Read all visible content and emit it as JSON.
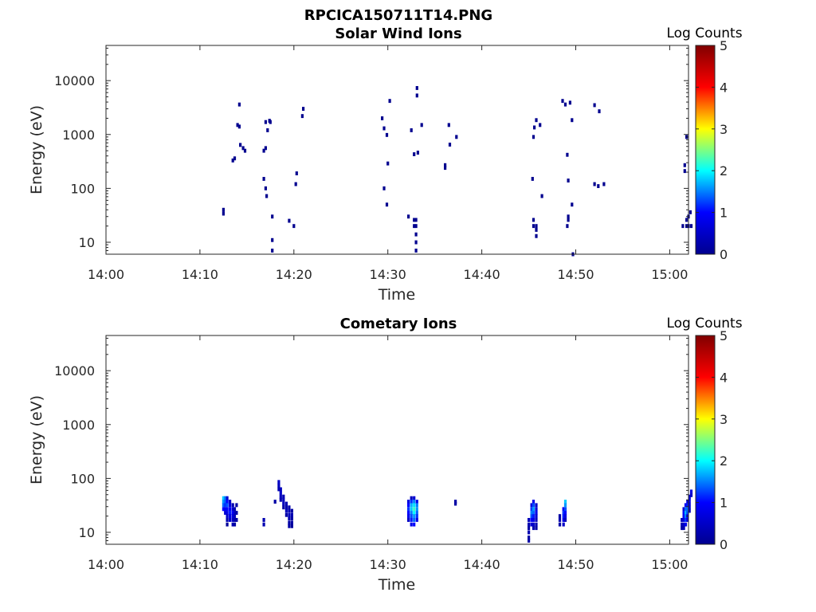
{
  "figure": {
    "title": "RPCICA150711T14.PNG"
  },
  "colormap": {
    "name": "jet",
    "stops": [
      "#00008f",
      "#0000ff",
      "#00ffff",
      "#ffff00",
      "#ff0000",
      "#800000"
    ]
  },
  "chart_data": [
    {
      "type": "heatmap",
      "title": "Solar Wind Ions",
      "xlabel": "Time",
      "ylabel": "Energy (eV)",
      "xlim": [
        "14:00",
        "15:02"
      ],
      "ylim": [
        6,
        45000
      ],
      "yscale": "log",
      "xticks": [
        "14:00",
        "14:10",
        "14:20",
        "14:30",
        "14:40",
        "14:50",
        "15:00"
      ],
      "yticks": [
        10,
        100,
        1000,
        10000
      ],
      "colorbar": {
        "label": "Log Counts",
        "range": [
          0,
          5
        ],
        "ticks": [
          0,
          1,
          2,
          3,
          4,
          5
        ]
      },
      "cells": [
        [
          "14:12.5",
          40,
          0
        ],
        [
          "14:12.5",
          34,
          0
        ],
        [
          "14:13.5",
          330,
          0
        ],
        [
          "14:13.7",
          360,
          0
        ],
        [
          "14:14.0",
          1500,
          0
        ],
        [
          "14:14.2",
          1400,
          0
        ],
        [
          "14:14.2",
          3600,
          0
        ],
        [
          "14:14.3",
          640,
          0
        ],
        [
          "14:14.6",
          560,
          0
        ],
        [
          "14:14.8",
          500,
          0
        ],
        [
          "14:16.8",
          500,
          0
        ],
        [
          "14:17.0",
          560,
          0
        ],
        [
          "14:17.0",
          1700,
          0
        ],
        [
          "14:17.2",
          1200,
          0
        ],
        [
          "14:17.4",
          1800,
          0
        ],
        [
          "14:17.5",
          1700,
          0
        ],
        [
          "14:16.8",
          150,
          0
        ],
        [
          "14:17.0",
          100,
          0
        ],
        [
          "14:17.1",
          72,
          0
        ],
        [
          "14:17.7",
          30,
          0
        ],
        [
          "14:17.7",
          11,
          0
        ],
        [
          "14:17.7",
          7,
          0
        ],
        [
          "14:19.5",
          25,
          0
        ],
        [
          "14:20.0",
          20,
          0
        ],
        [
          "14:20.2",
          120,
          0
        ],
        [
          "14:20.3",
          190,
          0
        ],
        [
          "14:20.9",
          2200,
          0
        ],
        [
          "14:21.0",
          3000,
          0
        ],
        [
          "14:29.4",
          2000,
          0
        ],
        [
          "14:29.6",
          1300,
          0
        ],
        [
          "14:29.9",
          980,
          0
        ],
        [
          "14:30.0",
          290,
          0
        ],
        [
          "14:30.2",
          4200,
          0
        ],
        [
          "14:29.6",
          100,
          0
        ],
        [
          "14:29.9",
          50,
          0
        ],
        [
          "14:32.2",
          30,
          0
        ],
        [
          "14:32.5",
          1200,
          0
        ],
        [
          "14:32.8",
          430,
          0
        ],
        [
          "14:32.8",
          26,
          0
        ],
        [
          "14:32.8",
          20,
          0
        ],
        [
          "14:33.0",
          26,
          0
        ],
        [
          "14:33.0",
          20,
          0
        ],
        [
          "14:33.0",
          14,
          0
        ],
        [
          "14:33.0",
          10,
          0
        ],
        [
          "14:33.0",
          7,
          0
        ],
        [
          "14:33.1",
          5300,
          0
        ],
        [
          "14:33.1",
          7300,
          0
        ],
        [
          "14:33.2",
          460,
          0
        ],
        [
          "14:33.6",
          1500,
          0
        ],
        [
          "14:36.1",
          270,
          0
        ],
        [
          "14:36.1",
          240,
          0
        ],
        [
          "14:36.5",
          1500,
          0
        ],
        [
          "14:36.6",
          650,
          0
        ],
        [
          "14:37.3",
          900,
          0
        ],
        [
          "14:45.4",
          150,
          0
        ],
        [
          "14:45.5",
          900,
          0
        ],
        [
          "14:45.6",
          1350,
          0
        ],
        [
          "14:45.8",
          1850,
          0
        ],
        [
          "14:46.2",
          1500,
          0
        ],
        [
          "14:46.4",
          72,
          0
        ],
        [
          "14:45.5",
          26,
          0
        ],
        [
          "14:45.5",
          20,
          0
        ],
        [
          "14:45.8",
          20,
          0
        ],
        [
          "14:45.8",
          17,
          0
        ],
        [
          "14:45.8",
          13,
          0
        ],
        [
          "14:48.6",
          4200,
          0
        ],
        [
          "14:48.9",
          3600,
          0
        ],
        [
          "14:49.4",
          3900,
          0
        ],
        [
          "14:49.1",
          420,
          0
        ],
        [
          "14:49.2",
          140,
          0
        ],
        [
          "14:49.6",
          1850,
          0
        ],
        [
          "14:49.1",
          20,
          0
        ],
        [
          "14:49.2",
          30,
          0
        ],
        [
          "14:49.2",
          26,
          0
        ],
        [
          "14:49.6",
          50,
          0
        ],
        [
          "14:49.7",
          6,
          0
        ],
        [
          "14:52.0",
          3500,
          0
        ],
        [
          "14:52.5",
          2700,
          0
        ],
        [
          "14:52.0",
          120,
          0
        ],
        [
          "14:52.4",
          110,
          0
        ],
        [
          "14:53.0",
          120,
          0
        ],
        [
          "15:01.4",
          20,
          0
        ],
        [
          "15:01.6",
          270,
          0
        ],
        [
          "15:01.6",
          210,
          0
        ],
        [
          "15:01.8",
          900,
          0
        ],
        [
          "15:01.8",
          26,
          0
        ],
        [
          "15:01.8",
          20,
          0
        ],
        [
          "15:02.0",
          30,
          0
        ],
        [
          "15:02.0",
          20,
          0
        ],
        [
          "15:02.2",
          36,
          0
        ],
        [
          "15:02.3",
          20,
          0
        ]
      ]
    },
    {
      "type": "heatmap",
      "title": "Cometary Ions",
      "xlabel": "Time",
      "ylabel": "Energy (eV)",
      "xlim": [
        "14:00",
        "15:02"
      ],
      "ylim": [
        6,
        45000
      ],
      "yscale": "log",
      "xticks": [
        "14:00",
        "14:10",
        "14:20",
        "14:30",
        "14:40",
        "14:50",
        "15:00"
      ],
      "yticks": [
        10,
        100,
        1000,
        10000
      ],
      "colorbar": {
        "label": "Log Counts",
        "range": [
          0,
          5
        ],
        "ticks": [
          0,
          1,
          2,
          3,
          4,
          5
        ]
      },
      "cells": [
        [
          "14:12.5",
          43,
          1.8
        ],
        [
          "14:12.5",
          37,
          1.6
        ],
        [
          "14:12.5",
          32,
          1.4
        ],
        [
          "14:12.5",
          27,
          1.0
        ],
        [
          "14:12.7",
          43,
          1.5
        ],
        [
          "14:12.7",
          37,
          1.4
        ],
        [
          "14:12.7",
          32,
          1.2
        ],
        [
          "14:12.7",
          27,
          0.9
        ],
        [
          "14:12.7",
          23,
          0.6
        ],
        [
          "14:12.9",
          43,
          0.6
        ],
        [
          "14:12.9",
          37,
          1.0
        ],
        [
          "14:12.9",
          32,
          1.3
        ],
        [
          "14:12.9",
          27,
          1.0
        ],
        [
          "14:12.9",
          23,
          0.8
        ],
        [
          "14:12.9",
          20,
          0.5
        ],
        [
          "14:12.9",
          17,
          0.3
        ],
        [
          "14:12.9",
          14,
          0.1
        ],
        [
          "14:13.2",
          37,
          0.5
        ],
        [
          "14:13.2",
          32,
          0.7
        ],
        [
          "14:13.2",
          27,
          1.0
        ],
        [
          "14:13.2",
          23,
          1.1
        ],
        [
          "14:13.2",
          20,
          0.8
        ],
        [
          "14:13.2",
          17,
          0.6
        ],
        [
          "14:13.5",
          32,
          0.3
        ],
        [
          "14:13.5",
          27,
          0.6
        ],
        [
          "14:13.5",
          23,
          0.9
        ],
        [
          "14:13.5",
          20,
          0.7
        ],
        [
          "14:13.5",
          17,
          0.5
        ],
        [
          "14:13.5",
          14,
          0.3
        ],
        [
          "14:13.7",
          27,
          0.3
        ],
        [
          "14:13.7",
          23,
          0.5
        ],
        [
          "14:13.7",
          20,
          0.4
        ],
        [
          "14:13.7",
          17,
          0.3
        ],
        [
          "14:13.7",
          14,
          0.2
        ],
        [
          "14:13.9",
          32,
          0.2
        ],
        [
          "14:13.9",
          23,
          0.2
        ],
        [
          "14:13.9",
          17,
          0.2
        ],
        [
          "14:16.8",
          17,
          0.3
        ],
        [
          "14:16.8",
          14,
          0.3
        ],
        [
          "14:18.0",
          37,
          0.2
        ],
        [
          "14:18.4",
          86,
          0.5
        ],
        [
          "14:18.4",
          74,
          0.4
        ],
        [
          "14:18.4",
          63,
          0.3
        ],
        [
          "14:18.6",
          63,
          0.4
        ],
        [
          "14:18.6",
          54,
          0.5
        ],
        [
          "14:18.6",
          46,
          0.4
        ],
        [
          "14:18.6",
          40,
          0.3
        ],
        [
          "14:18.9",
          46,
          0.3
        ],
        [
          "14:18.9",
          40,
          0.4
        ],
        [
          "14:18.9",
          34,
          0.4
        ],
        [
          "14:18.9",
          29,
          0.2
        ],
        [
          "14:19.2",
          34,
          0.3
        ],
        [
          "14:19.2",
          29,
          0.3
        ],
        [
          "14:19.2",
          25,
          0.4
        ],
        [
          "14:19.2",
          21,
          0.2
        ],
        [
          "14:19.5",
          29,
          0.2
        ],
        [
          "14:19.5",
          25,
          0.3
        ],
        [
          "14:19.5",
          21,
          0.4
        ],
        [
          "14:19.5",
          18,
          0.3
        ],
        [
          "14:19.5",
          15,
          0.2
        ],
        [
          "14:19.5",
          13,
          0.2
        ],
        [
          "14:19.8",
          25,
          0.2
        ],
        [
          "14:19.8",
          21,
          0.3
        ],
        [
          "14:19.8",
          18,
          0.2
        ],
        [
          "14:19.8",
          15,
          0.2
        ],
        [
          "14:19.8",
          13,
          0.1
        ],
        [
          "14:32.2",
          37,
          0.7
        ],
        [
          "14:32.2",
          32,
          1.0
        ],
        [
          "14:32.2",
          27,
          1.2
        ],
        [
          "14:32.2",
          23,
          1.0
        ],
        [
          "14:32.2",
          20,
          0.8
        ],
        [
          "14:32.2",
          17,
          0.5
        ],
        [
          "14:32.5",
          43,
          0.4
        ],
        [
          "14:32.5",
          37,
          1.2
        ],
        [
          "14:32.5",
          32,
          1.7
        ],
        [
          "14:32.5",
          27,
          1.8
        ],
        [
          "14:32.5",
          23,
          1.5
        ],
        [
          "14:32.5",
          20,
          1.3
        ],
        [
          "14:32.5",
          17,
          1.1
        ],
        [
          "14:32.5",
          14,
          0.8
        ],
        [
          "14:32.8",
          43,
          0.6
        ],
        [
          "14:32.8",
          37,
          1.5
        ],
        [
          "14:32.8",
          32,
          1.9
        ],
        [
          "14:32.8",
          27,
          2.2
        ],
        [
          "14:32.8",
          23,
          2.0
        ],
        [
          "14:32.8",
          20,
          1.6
        ],
        [
          "14:32.8",
          17,
          1.4
        ],
        [
          "14:32.8",
          14,
          1.0
        ],
        [
          "14:33.1",
          37,
          0.8
        ],
        [
          "14:33.1",
          32,
          1.5
        ],
        [
          "14:33.1",
          27,
          1.6
        ],
        [
          "14:33.1",
          23,
          1.4
        ],
        [
          "14:33.1",
          20,
          1.2
        ],
        [
          "14:33.1",
          17,
          0.8
        ],
        [
          "14:37.2",
          37,
          0.2
        ],
        [
          "14:37.2",
          34,
          0.2
        ],
        [
          "14:45.0",
          17,
          0.4
        ],
        [
          "14:45.0",
          14,
          0.3
        ],
        [
          "14:45.0",
          12,
          0.2
        ],
        [
          "14:45.0",
          10,
          0.3
        ],
        [
          "14:45.0",
          8,
          0.2
        ],
        [
          "14:45.0",
          7,
          0.2
        ],
        [
          "14:45.3",
          32,
          0.7
        ],
        [
          "14:45.3",
          27,
          1.2
        ],
        [
          "14:45.3",
          23,
          1.5
        ],
        [
          "14:45.3",
          20,
          1.3
        ],
        [
          "14:45.3",
          17,
          1.0
        ],
        [
          "14:45.3",
          14,
          0.6
        ],
        [
          "14:45.5",
          37,
          0.8
        ],
        [
          "14:45.5",
          32,
          1.3
        ],
        [
          "14:45.5",
          27,
          1.6
        ],
        [
          "14:45.5",
          23,
          1.4
        ],
        [
          "14:45.5",
          20,
          1.1
        ],
        [
          "14:45.5",
          17,
          0.8
        ],
        [
          "14:45.5",
          14,
          0.5
        ],
        [
          "14:45.5",
          12,
          0.3
        ],
        [
          "14:45.8",
          32,
          0.5
        ],
        [
          "14:45.8",
          27,
          0.7
        ],
        [
          "14:45.8",
          23,
          0.8
        ],
        [
          "14:45.8",
          20,
          0.6
        ],
        [
          "14:45.8",
          17,
          0.4
        ],
        [
          "14:45.8",
          14,
          0.3
        ],
        [
          "14:45.8",
          12,
          0.2
        ],
        [
          "14:48.3",
          20,
          0.2
        ],
        [
          "14:48.3",
          17,
          0.3
        ],
        [
          "14:48.3",
          14,
          0.2
        ],
        [
          "14:48.7",
          27,
          0.9
        ],
        [
          "14:48.7",
          23,
          1.2
        ],
        [
          "14:48.7",
          20,
          1.1
        ],
        [
          "14:48.7",
          17,
          0.8
        ],
        [
          "14:48.7",
          14,
          0.5
        ],
        [
          "14:48.9",
          37,
          1.8
        ],
        [
          "14:48.9",
          32,
          1.6
        ],
        [
          "14:48.9",
          27,
          1.3
        ],
        [
          "14:48.9",
          23,
          1.0
        ],
        [
          "14:48.9",
          20,
          0.7
        ],
        [
          "14:48.9",
          17,
          0.4
        ],
        [
          "15:01.3",
          17,
          0.4
        ],
        [
          "15:01.3",
          14,
          0.3
        ],
        [
          "15:01.3",
          12,
          0.2
        ],
        [
          "15:01.5",
          27,
          0.6
        ],
        [
          "15:01.5",
          23,
          0.9
        ],
        [
          "15:01.5",
          20,
          0.9
        ],
        [
          "15:01.5",
          17,
          0.7
        ],
        [
          "15:01.5",
          14,
          0.5
        ],
        [
          "15:01.5",
          12,
          0.3
        ],
        [
          "15:01.7",
          32,
          0.9
        ],
        [
          "15:01.7",
          27,
          1.4
        ],
        [
          "15:01.7",
          23,
          1.7
        ],
        [
          "15:01.7",
          20,
          1.5
        ],
        [
          "15:01.7",
          17,
          1.2
        ],
        [
          "15:01.7",
          14,
          0.8
        ],
        [
          "15:01.9",
          37,
          0.7
        ],
        [
          "15:01.9",
          32,
          1.1
        ],
        [
          "15:01.9",
          27,
          1.4
        ],
        [
          "15:01.9",
          23,
          1.3
        ],
        [
          "15:01.9",
          20,
          1.0
        ],
        [
          "15:01.9",
          17,
          0.7
        ],
        [
          "15:02.1",
          46,
          0.6
        ],
        [
          "15:02.1",
          40,
          0.8
        ],
        [
          "15:02.1",
          34,
          0.7
        ],
        [
          "15:02.1",
          29,
          0.6
        ],
        [
          "15:02.1",
          25,
          0.4
        ],
        [
          "15:02.3",
          57,
          0.7
        ],
        [
          "15:02.3",
          49,
          0.5
        ]
      ]
    }
  ]
}
